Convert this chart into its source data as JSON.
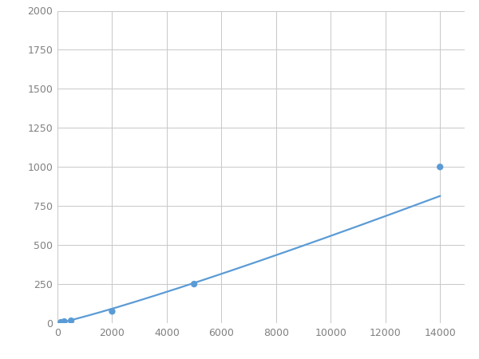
{
  "x_data": [
    125,
    250,
    500,
    2000,
    5000,
    14000
  ],
  "y_data": [
    5,
    10,
    15,
    75,
    250,
    1000
  ],
  "line_color": "#5b9bd5",
  "marker_color": "#5b9bd5",
  "marker_size": 6,
  "xlim": [
    0,
    14900
  ],
  "ylim": [
    0,
    2000
  ],
  "xticks": [
    0,
    2000,
    4000,
    6000,
    8000,
    10000,
    12000,
    14000
  ],
  "yticks": [
    0,
    250,
    500,
    750,
    1000,
    1250,
    1500,
    1750,
    2000
  ],
  "grid_color": "#c8c8c8",
  "background_color": "#ffffff",
  "figure_background": "#ffffff",
  "linewidth": 1.6,
  "tick_label_color": "#808080",
  "tick_label_size": 9
}
